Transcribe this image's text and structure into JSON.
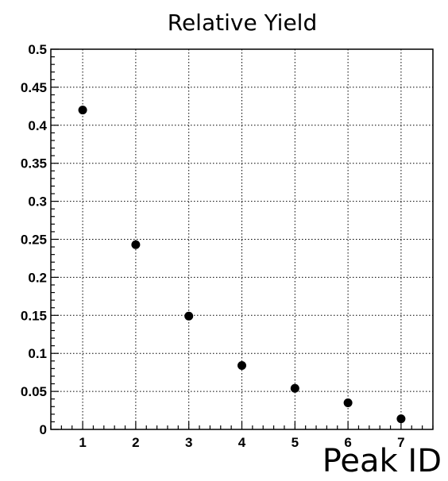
{
  "chart_data": {
    "type": "scatter",
    "title": "Relative Yield",
    "xlabel": "Peak ID",
    "ylabel": "",
    "x": [
      1,
      2,
      3,
      4,
      5,
      6,
      7
    ],
    "y": [
      0.42,
      0.243,
      0.149,
      0.084,
      0.054,
      0.035,
      0.014
    ],
    "xlim": [
      0.4,
      7.6
    ],
    "ylim": [
      0,
      0.5
    ],
    "x_ticks": [
      1,
      2,
      3,
      4,
      5,
      6,
      7
    ],
    "x_tick_labels": [
      "1",
      "2",
      "3",
      "4",
      "5",
      "6",
      "7"
    ],
    "y_ticks": [
      0,
      0.05,
      0.1,
      0.15,
      0.2,
      0.25,
      0.3,
      0.35,
      0.4,
      0.45,
      0.5
    ],
    "y_tick_labels": [
      "0",
      "0.05",
      "0.1",
      "0.15",
      "0.2",
      "0.25",
      "0.3",
      "0.35",
      "0.4",
      "0.45",
      "0.5"
    ],
    "grid": true,
    "marker_color": "#000000"
  }
}
